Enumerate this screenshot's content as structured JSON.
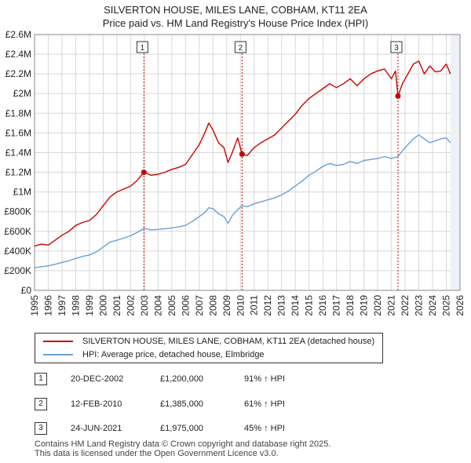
{
  "title_line1": "SILVERTON HOUSE, MILES LANE, COBHAM, KT11 2EA",
  "title_line2": "Price paid vs. HM Land Registry's House Price Index (HPI)",
  "colors": {
    "property": "#cc0000",
    "hpi": "#6a9fd4",
    "grid": "#d8d8d8",
    "marker_line": "#cc0000"
  },
  "chart_data": {
    "type": "line",
    "xlim": [
      1995,
      2026
    ],
    "ylim": [
      0,
      2600000
    ],
    "x_ticks": [
      "1995",
      "1996",
      "1997",
      "1998",
      "1999",
      "2000",
      "2001",
      "2002",
      "2003",
      "2004",
      "2005",
      "2006",
      "2007",
      "2008",
      "2009",
      "2010",
      "2011",
      "2012",
      "2013",
      "2014",
      "2015",
      "2016",
      "2017",
      "2018",
      "2019",
      "2020",
      "2021",
      "2022",
      "2023",
      "2024",
      "2025",
      "2026"
    ],
    "y_ticks": [
      {
        "value": 0,
        "label": "£0"
      },
      {
        "value": 200000,
        "label": "£200K"
      },
      {
        "value": 400000,
        "label": "£400K"
      },
      {
        "value": 600000,
        "label": "£600K"
      },
      {
        "value": 800000,
        "label": "£800K"
      },
      {
        "value": 1000000,
        "label": "£1M"
      },
      {
        "value": 1200000,
        "label": "£1.2M"
      },
      {
        "value": 1400000,
        "label": "£1.4M"
      },
      {
        "value": 1600000,
        "label": "£1.6M"
      },
      {
        "value": 1800000,
        "label": "£1.8M"
      },
      {
        "value": 2000000,
        "label": "£2M"
      },
      {
        "value": 2200000,
        "label": "£2.2M"
      },
      {
        "value": 2400000,
        "label": "£2.4M"
      },
      {
        "value": 2600000,
        "label": "£2.6M"
      }
    ],
    "series": [
      {
        "name": "SILVERTON HOUSE, MILES LANE, COBHAM, KT11 2EA (detached house)",
        "color": "#cc0000",
        "x": [
          1995.0,
          1995.5,
          1996.0,
          1996.5,
          1997.0,
          1997.5,
          1998.0,
          1998.5,
          1999.0,
          1999.5,
          2000.0,
          2000.5,
          2001.0,
          2001.5,
          2002.0,
          2002.5,
          2002.97,
          2003.5,
          2004.0,
          2004.5,
          2005.0,
          2005.5,
          2006.0,
          2006.5,
          2007.0,
          2007.4,
          2007.7,
          2008.0,
          2008.4,
          2008.8,
          2009.1,
          2009.4,
          2009.8,
          2010.12,
          2010.5,
          2011.0,
          2011.5,
          2012.0,
          2012.5,
          2013.0,
          2013.5,
          2014.0,
          2014.5,
          2015.0,
          2015.5,
          2016.0,
          2016.5,
          2017.0,
          2017.5,
          2018.0,
          2018.5,
          2019.0,
          2019.5,
          2020.0,
          2020.5,
          2021.0,
          2021.3,
          2021.48,
          2021.8,
          2022.2,
          2022.6,
          2023.0,
          2023.4,
          2023.8,
          2024.2,
          2024.6,
          2025.0,
          2025.3
        ],
        "values": [
          450000,
          470000,
          460000,
          510000,
          560000,
          600000,
          660000,
          690000,
          710000,
          770000,
          860000,
          950000,
          1000000,
          1030000,
          1060000,
          1120000,
          1200000,
          1170000,
          1180000,
          1200000,
          1230000,
          1250000,
          1280000,
          1380000,
          1480000,
          1600000,
          1700000,
          1630000,
          1500000,
          1450000,
          1300000,
          1400000,
          1550000,
          1385000,
          1370000,
          1450000,
          1500000,
          1540000,
          1580000,
          1650000,
          1720000,
          1790000,
          1880000,
          1950000,
          2000000,
          2050000,
          2100000,
          2060000,
          2100000,
          2150000,
          2080000,
          2150000,
          2200000,
          2230000,
          2250000,
          2150000,
          2230000,
          1975000,
          2100000,
          2200000,
          2300000,
          2330000,
          2200000,
          2280000,
          2220000,
          2230000,
          2300000,
          2200000
        ]
      },
      {
        "name": "HPI: Average price, detached house, Elmbridge",
        "color": "#6a9fd4",
        "x": [
          1995.0,
          1995.5,
          1996.0,
          1996.5,
          1997.0,
          1997.5,
          1998.0,
          1998.5,
          1999.0,
          1999.5,
          2000.0,
          2000.5,
          2001.0,
          2001.5,
          2002.0,
          2002.5,
          2002.97,
          2003.5,
          2004.0,
          2004.5,
          2005.0,
          2005.5,
          2006.0,
          2006.5,
          2007.0,
          2007.4,
          2007.7,
          2008.0,
          2008.4,
          2008.8,
          2009.1,
          2009.4,
          2009.8,
          2010.12,
          2010.5,
          2011.0,
          2011.5,
          2012.0,
          2012.5,
          2013.0,
          2013.5,
          2014.0,
          2014.5,
          2015.0,
          2015.5,
          2016.0,
          2016.5,
          2017.0,
          2017.5,
          2018.0,
          2018.5,
          2019.0,
          2019.5,
          2020.0,
          2020.5,
          2021.0,
          2021.48,
          2021.8,
          2022.2,
          2022.6,
          2023.0,
          2023.4,
          2023.8,
          2024.2,
          2024.6,
          2025.0,
          2025.3
        ],
        "values": [
          230000,
          240000,
          250000,
          265000,
          285000,
          300000,
          325000,
          345000,
          360000,
          390000,
          440000,
          490000,
          510000,
          530000,
          555000,
          590000,
          630000,
          615000,
          620000,
          625000,
          635000,
          645000,
          660000,
          700000,
          750000,
          790000,
          840000,
          830000,
          780000,
          750000,
          680000,
          760000,
          820000,
          860000,
          850000,
          880000,
          900000,
          920000,
          940000,
          970000,
          1010000,
          1060000,
          1110000,
          1170000,
          1210000,
          1260000,
          1290000,
          1270000,
          1280000,
          1310000,
          1290000,
          1320000,
          1330000,
          1340000,
          1360000,
          1340000,
          1360000,
          1420000,
          1480000,
          1540000,
          1580000,
          1540000,
          1500000,
          1520000,
          1540000,
          1550000,
          1500000
        ]
      }
    ],
    "sales": [
      {
        "label": "1",
        "x": 2002.97,
        "value": 1200000
      },
      {
        "label": "2",
        "x": 2010.12,
        "value": 1385000
      },
      {
        "label": "3",
        "x": 2021.48,
        "value": 1975000
      }
    ]
  },
  "legend": {
    "property_label": "SILVERTON HOUSE, MILES LANE, COBHAM, KT11 2EA (detached house)",
    "hpi_label": "HPI: Average price, detached house, Elmbridge"
  },
  "transactions": [
    {
      "num": "1",
      "date": "20-DEC-2002",
      "price": "£1,200,000",
      "hpi": "91% ↑ HPI"
    },
    {
      "num": "2",
      "date": "12-FEB-2010",
      "price": "£1,385,000",
      "hpi": "61% ↑ HPI"
    },
    {
      "num": "3",
      "date": "24-JUN-2021",
      "price": "£1,975,000",
      "hpi": "45% ↑ HPI"
    }
  ],
  "footer": {
    "line1": "Contains HM Land Registry data © Crown copyright and database right 2025.",
    "line2": "This data is licensed under the Open Government Licence v3.0."
  }
}
